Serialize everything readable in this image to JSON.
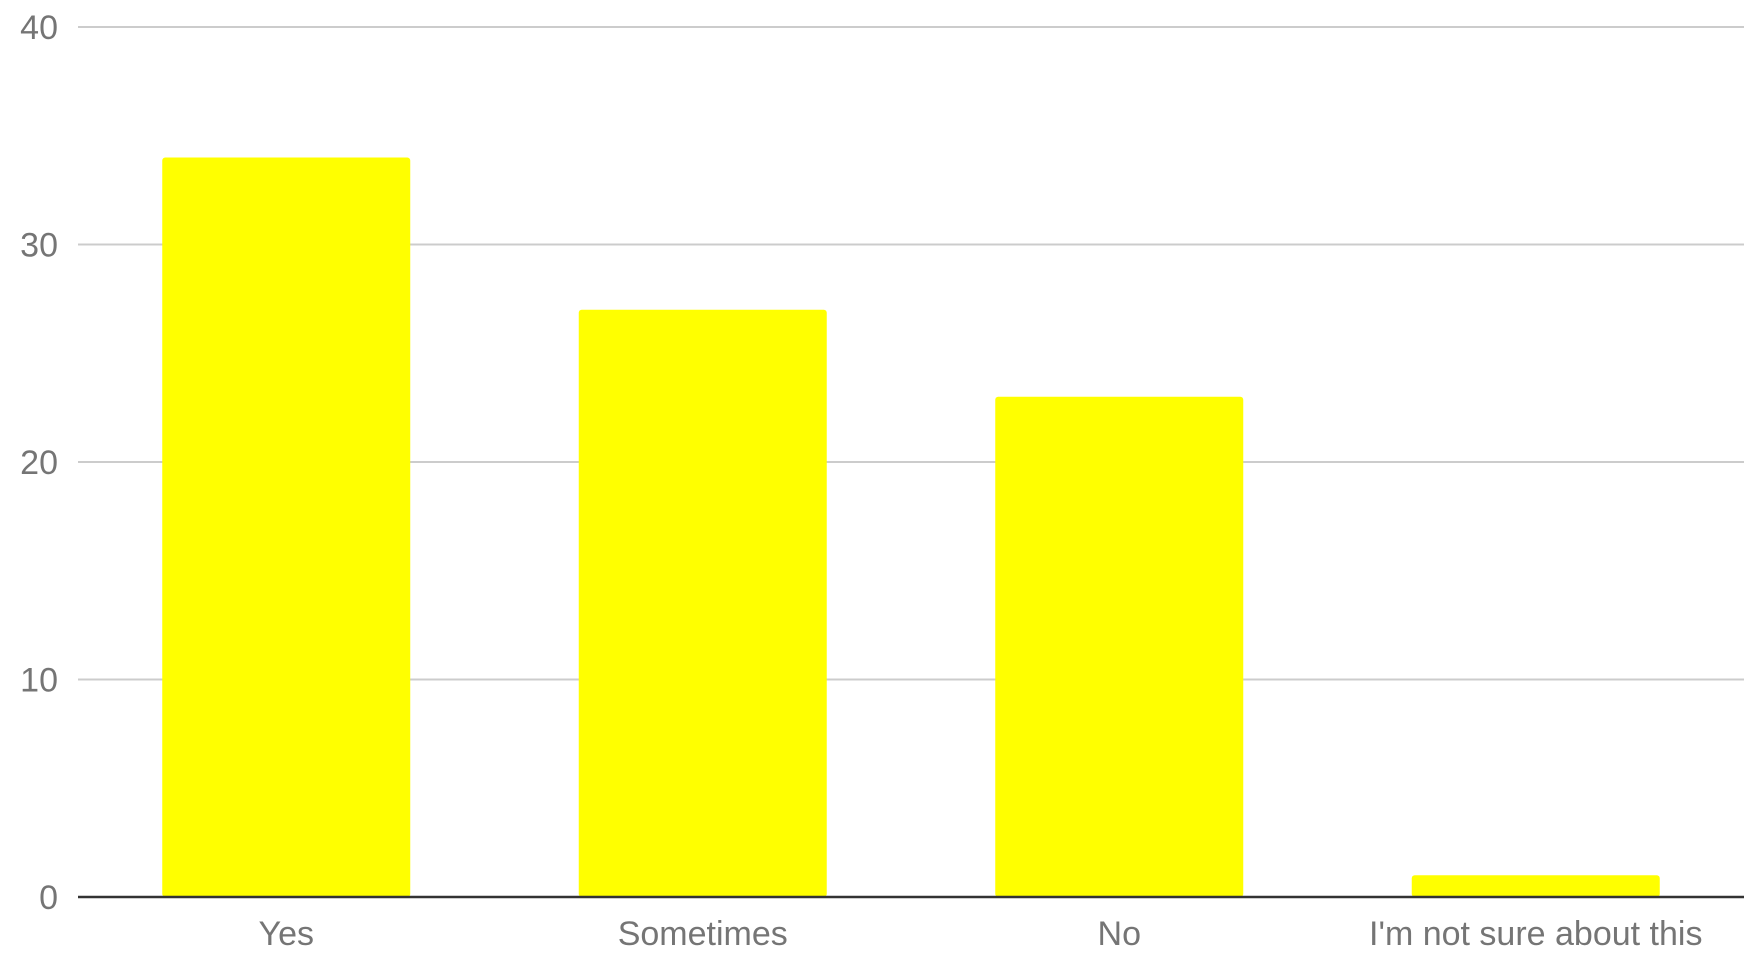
{
  "chart_data": {
    "type": "bar",
    "title": "",
    "xlabel": "",
    "ylabel": "",
    "categories": [
      "Yes",
      "Sometimes",
      "No",
      "I'm not sure about this"
    ],
    "values": [
      34,
      27,
      23,
      1
    ],
    "ylim": [
      0,
      40
    ],
    "yticks": [
      "0",
      "10",
      "20",
      "30",
      "40"
    ],
    "grid": true,
    "legend": "none",
    "colors": {
      "bar": "#ffff00",
      "grid": "#cccccc",
      "baseline": "#333333",
      "text": "#757575"
    }
  }
}
